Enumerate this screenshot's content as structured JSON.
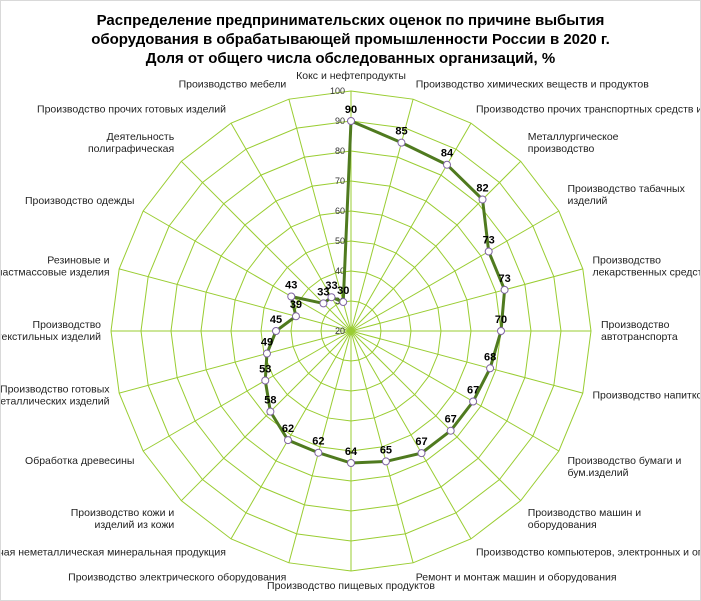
{
  "chart_data": {
    "type": "radar",
    "title": "Распределение предпринимательских оценок по причине выбытия оборудования в обрабатывающей промышленности России в 2020 г.",
    "subtitle": "Доля от общего числа обследованных организаций, %",
    "categories": [
      "Кокс и нефтепродукты",
      "Производство химических веществ и продуктов",
      "Производство прочих транспортных средств и оборудования",
      "Металлургическое производство",
      "Производство табачных изделий",
      "Производство лекарственных средств",
      "Производство автотранспорта",
      "Производство напитков",
      "Производство бумаги и бум.изделий",
      "Производство машин и оборудования",
      "Производство компьютеров, электронных и оптических изделий",
      "Ремонт и монтаж машин и оборудования",
      "Производство пищевых продуктов",
      "Производство электрического оборудования",
      "Прочая неметаллическая минеральная продукция",
      "Производство кожи и изделий из кожи",
      "Обработка древесины",
      "Производство готовых металлических изделий",
      "Производство текстильных изделий",
      "Резиновые и пластмассовые изделия",
      "Производство одежды",
      "Деятельность полиграфическая",
      "Производство прочих готовых изделий",
      "Производство мебели"
    ],
    "values": [
      90,
      85,
      84,
      82,
      73,
      73,
      70,
      68,
      67,
      67,
      67,
      65,
      64,
      62,
      62,
      58,
      53,
      49,
      45,
      39,
      43,
      33,
      33,
      30
    ],
    "color": "#4f7a1f",
    "ylim": [
      20,
      100
    ],
    "yticks": [
      20,
      30,
      40,
      50,
      60,
      70,
      80,
      90,
      100
    ],
    "grid": true
  }
}
